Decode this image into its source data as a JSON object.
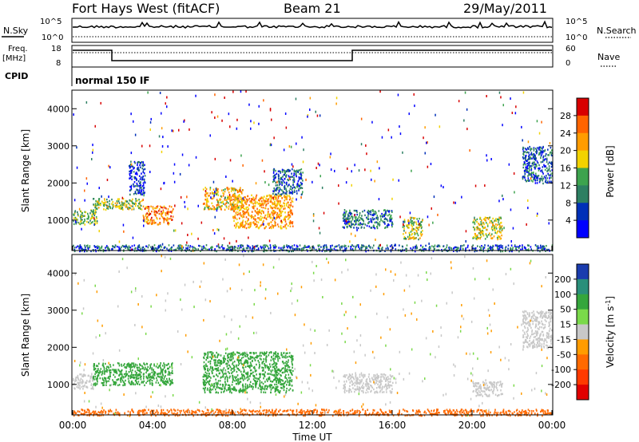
{
  "header": {
    "station": "Fort Hays West (fitACF)",
    "beam": "Beam 21",
    "date": "29/May/2011"
  },
  "top_panels": {
    "nsky_label": "N.Sky",
    "nsky_ticks": [
      "10^5",
      "10^0"
    ],
    "nsearch_label": "N.Search",
    "nsearch_ticks": [
      "10^5",
      "10^0"
    ],
    "freq_label_1": "Freq.",
    "freq_label_2": "[MHz]",
    "freq_ticks": [
      "18",
      "8"
    ],
    "nave_label": "Nave",
    "nave_ticks": [
      "60",
      "0"
    ],
    "cpid_label": "CPID",
    "cpid_value": "normal 150 IF"
  },
  "x_axis": {
    "title": "Time UT",
    "ticks": [
      "00:00",
      "04:00",
      "08:00",
      "12:00",
      "16:00",
      "20:00",
      "00:00"
    ]
  },
  "chart_data": [
    {
      "type": "heatmap",
      "title": "",
      "xlabel": "Time UT",
      "ylabel": "Slant Range [km]",
      "xlim_hours": [
        0,
        24
      ],
      "ylim_km": [
        180,
        4500
      ],
      "y_ticks": [
        "4000",
        "3000",
        "2000",
        "1000"
      ],
      "colorbar": {
        "label": "Power [dB]",
        "ticks": [
          "28",
          "24",
          "20",
          "16",
          "12",
          "8",
          "4"
        ],
        "colors": [
          "#d80000",
          "#ff6400",
          "#ff9c00",
          "#f2d200",
          "#3da34e",
          "#2d7f62",
          "#0030b8",
          "#0000ff"
        ]
      },
      "regions": [
        {
          "t0": 0.0,
          "t1": 1.2,
          "r0": 900,
          "r1": 1300,
          "level": 12
        },
        {
          "t0": 1.0,
          "t1": 3.5,
          "r0": 1300,
          "r1": 1600,
          "level": 14
        },
        {
          "t0": 3.5,
          "t1": 5.0,
          "r0": 900,
          "r1": 1400,
          "level": 22
        },
        {
          "t0": 2.8,
          "t1": 3.6,
          "r0": 1700,
          "r1": 2600,
          "level": 4
        },
        {
          "t0": 6.5,
          "t1": 8.5,
          "r0": 1300,
          "r1": 1900,
          "level": 18
        },
        {
          "t0": 8.0,
          "t1": 11.0,
          "r0": 800,
          "r1": 1700,
          "level": 20
        },
        {
          "t0": 10.0,
          "t1": 11.5,
          "r0": 1700,
          "r1": 2400,
          "level": 6
        },
        {
          "t0": 13.5,
          "t1": 16.0,
          "r0": 800,
          "r1": 1300,
          "level": 8
        },
        {
          "t0": 16.5,
          "t1": 17.5,
          "r0": 500,
          "r1": 1100,
          "level": 14
        },
        {
          "t0": 20.0,
          "t1": 21.5,
          "r0": 500,
          "r1": 1100,
          "level": 16
        },
        {
          "t0": 22.5,
          "t1": 24.0,
          "r0": 2000,
          "r1": 3000,
          "level": 6
        },
        {
          "t0": 0.0,
          "t1": 24.0,
          "r0": 180,
          "r1": 350,
          "level": 6
        }
      ]
    },
    {
      "type": "heatmap",
      "title": "",
      "xlabel": "Time UT",
      "ylabel": "Slant Range [km]",
      "xlim_hours": [
        0,
        24
      ],
      "ylim_km": [
        180,
        4500
      ],
      "y_ticks": [
        "4000",
        "3000",
        "2000",
        "1000"
      ],
      "colorbar": {
        "label": "Velocity [m s-1]",
        "ticks": [
          "200",
          "100",
          "50",
          "15",
          "-15",
          "-50",
          "-100",
          "-200"
        ],
        "colors": [
          "#1a3cae",
          "#2a8f7a",
          "#35a63c",
          "#7ad94a",
          "#c8c8c8",
          "#ff9c00",
          "#ff6a00",
          "#ff3a00",
          "#e10000"
        ]
      },
      "regions": [
        {
          "t0": 0.0,
          "t1": 1.0,
          "r0": 900,
          "r1": 1300,
          "level": 0
        },
        {
          "t0": 1.0,
          "t1": 5.0,
          "r0": 1000,
          "r1": 1600,
          "level": 40
        },
        {
          "t0": 6.5,
          "t1": 11.0,
          "r0": 800,
          "r1": 1900,
          "level": 45
        },
        {
          "t0": 13.5,
          "t1": 16.0,
          "r0": 800,
          "r1": 1300,
          "level": 0
        },
        {
          "t0": 20.0,
          "t1": 21.5,
          "r0": 700,
          "r1": 1100,
          "level": 0
        },
        {
          "t0": 22.5,
          "t1": 24.0,
          "r0": 2000,
          "r1": 3000,
          "level": 0
        },
        {
          "t0": 0.0,
          "t1": 24.0,
          "r0": 180,
          "r1": 350,
          "level": -60
        }
      ]
    }
  ]
}
